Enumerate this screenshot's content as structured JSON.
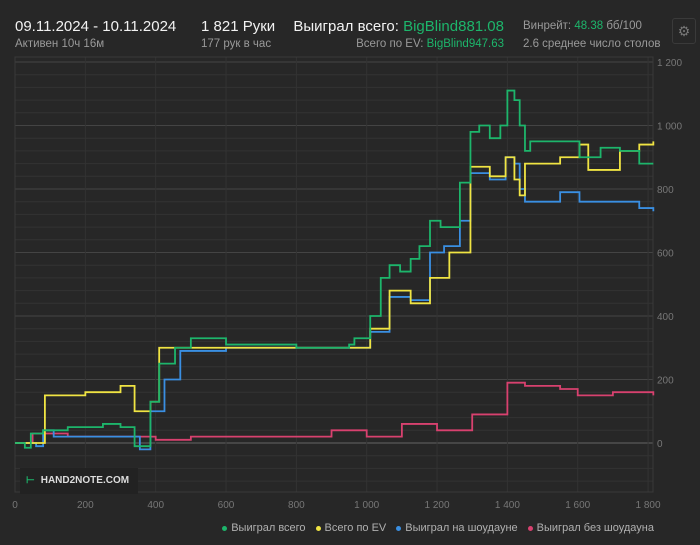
{
  "header": {
    "date_range": "09.11.2024 - 10.11.2024",
    "active": "Активен 10ч 16м",
    "hands": "1 821 Руки",
    "hands_per_hour": "177 рук в час",
    "won_label": "Выиграл всего:",
    "won_value": "BigBlind881.08",
    "ev_label": "Всего по EV:",
    "ev_value": "BigBlind947.63",
    "winrate_label": "Винрейт:",
    "winrate_value": "48.38",
    "winrate_unit": "бб/100",
    "tables": "2.6 среднее число столов"
  },
  "settings_icon": "gear-icon",
  "watermark": "HAND2NOTE.COM",
  "chart_data": {
    "type": "line",
    "xlim": [
      0,
      1820
    ],
    "ylim": [
      -150,
      1200
    ],
    "grid": true,
    "x_ticks": [
      "0",
      "200",
      "400",
      "600",
      "800",
      "1 000",
      "1 200",
      "1 400",
      "1 600",
      "1 800"
    ],
    "x_tick_values": [
      0,
      200,
      400,
      600,
      800,
      1000,
      1200,
      1400,
      1600,
      1800
    ],
    "y_ticks": [
      "0",
      "200",
      "400",
      "600",
      "800",
      "1 000",
      "1 200"
    ],
    "y_tick_values": [
      0,
      200,
      400,
      600,
      800,
      1000,
      1200
    ],
    "legend_position": "bottom-right",
    "series": [
      {
        "name": "Выиграл всего",
        "color": "#1db56b",
        "points": [
          [
            0,
            0
          ],
          [
            28,
            -15
          ],
          [
            45,
            30
          ],
          [
            80,
            40
          ],
          [
            150,
            50
          ],
          [
            250,
            60
          ],
          [
            300,
            50
          ],
          [
            340,
            -10
          ],
          [
            385,
            130
          ],
          [
            410,
            250
          ],
          [
            455,
            300
          ],
          [
            500,
            330
          ],
          [
            600,
            310
          ],
          [
            800,
            300
          ],
          [
            950,
            310
          ],
          [
            965,
            330
          ],
          [
            1010,
            400
          ],
          [
            1040,
            520
          ],
          [
            1065,
            560
          ],
          [
            1095,
            540
          ],
          [
            1125,
            580
          ],
          [
            1150,
            620
          ],
          [
            1180,
            700
          ],
          [
            1210,
            680
          ],
          [
            1265,
            820
          ],
          [
            1295,
            980
          ],
          [
            1320,
            1000
          ],
          [
            1350,
            960
          ],
          [
            1380,
            1000
          ],
          [
            1400,
            1110
          ],
          [
            1420,
            1080
          ],
          [
            1435,
            1000
          ],
          [
            1450,
            920
          ],
          [
            1465,
            950
          ],
          [
            1550,
            950
          ],
          [
            1605,
            900
          ],
          [
            1665,
            930
          ],
          [
            1720,
            920
          ],
          [
            1775,
            880
          ],
          [
            1815,
            880
          ]
        ]
      },
      {
        "name": "Всего по EV",
        "color": "#f0e443",
        "points": [
          [
            0,
            0
          ],
          [
            60,
            0
          ],
          [
            85,
            150
          ],
          [
            200,
            160
          ],
          [
            300,
            180
          ],
          [
            340,
            100
          ],
          [
            385,
            130
          ],
          [
            410,
            300
          ],
          [
            500,
            300
          ],
          [
            950,
            300
          ],
          [
            1010,
            360
          ],
          [
            1065,
            480
          ],
          [
            1125,
            440
          ],
          [
            1180,
            520
          ],
          [
            1235,
            600
          ],
          [
            1265,
            600
          ],
          [
            1295,
            870
          ],
          [
            1350,
            840
          ],
          [
            1395,
            900
          ],
          [
            1420,
            830
          ],
          [
            1435,
            780
          ],
          [
            1450,
            880
          ],
          [
            1550,
            900
          ],
          [
            1605,
            940
          ],
          [
            1630,
            860
          ],
          [
            1720,
            920
          ],
          [
            1775,
            940
          ],
          [
            1815,
            950
          ]
        ]
      },
      {
        "name": "Выиграл на шоудауне",
        "color": "#3a8fe2",
        "points": [
          [
            0,
            0
          ],
          [
            60,
            -10
          ],
          [
            80,
            40
          ],
          [
            110,
            20
          ],
          [
            200,
            20
          ],
          [
            330,
            20
          ],
          [
            355,
            -20
          ],
          [
            385,
            100
          ],
          [
            425,
            200
          ],
          [
            470,
            290
          ],
          [
            600,
            300
          ],
          [
            950,
            300
          ],
          [
            1010,
            350
          ],
          [
            1065,
            460
          ],
          [
            1125,
            450
          ],
          [
            1180,
            600
          ],
          [
            1220,
            620
          ],
          [
            1265,
            700
          ],
          [
            1295,
            850
          ],
          [
            1350,
            830
          ],
          [
            1395,
            900
          ],
          [
            1420,
            880
          ],
          [
            1435,
            800
          ],
          [
            1450,
            760
          ],
          [
            1550,
            790
          ],
          [
            1605,
            760
          ],
          [
            1720,
            760
          ],
          [
            1775,
            740
          ],
          [
            1815,
            730
          ]
        ]
      },
      {
        "name": "Выиграл без шоудауна",
        "color": "#d8416f",
        "points": [
          [
            0,
            0
          ],
          [
            50,
            30
          ],
          [
            150,
            20
          ],
          [
            300,
            20
          ],
          [
            400,
            10
          ],
          [
            500,
            20
          ],
          [
            700,
            20
          ],
          [
            900,
            40
          ],
          [
            1000,
            20
          ],
          [
            1100,
            60
          ],
          [
            1200,
            40
          ],
          [
            1300,
            90
          ],
          [
            1400,
            190
          ],
          [
            1450,
            180
          ],
          [
            1550,
            170
          ],
          [
            1600,
            150
          ],
          [
            1700,
            160
          ],
          [
            1815,
            150
          ]
        ]
      }
    ]
  }
}
